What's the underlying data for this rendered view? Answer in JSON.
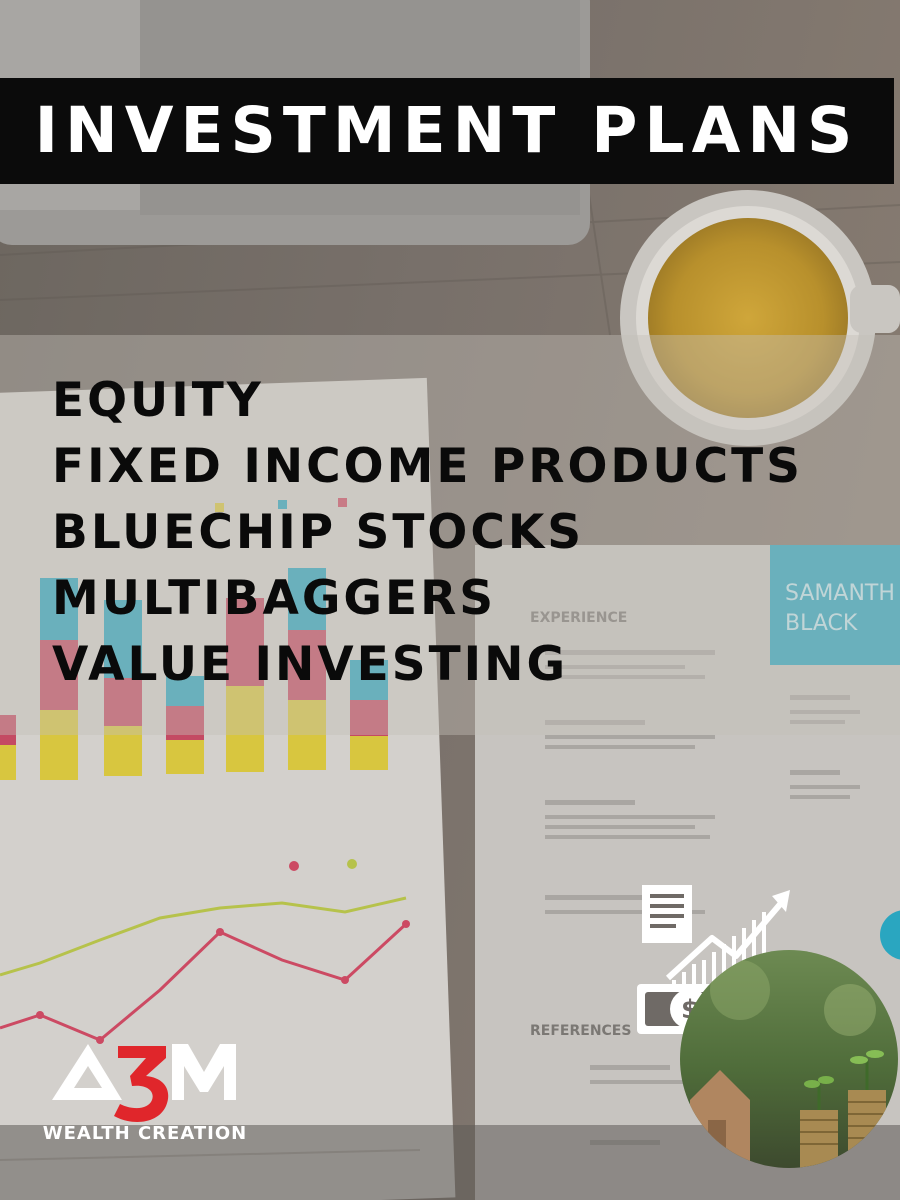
{
  "title": "INVESTMENT PLANS",
  "plans": [
    "EQUITY",
    "FIXED INCOME PRODUCTS",
    "BLUECHIP STOCKS",
    "MULTIBAGGERS",
    "VALUE INVESTING"
  ],
  "logo": {
    "wordmark": "A3M",
    "tagline": "WEALTH CREATION"
  },
  "background_paper": {
    "resume_name": "SAMANTHA BLACK",
    "resume_heading": "EXPERIENCE",
    "references_heading": "REFERENCES"
  },
  "icons": {
    "finance": "money-growth-icon",
    "photo": "coin-plant-house-photo"
  },
  "colors": {
    "title_bar": "#0b0b0b",
    "title_text": "#ffffff",
    "plan_text": "#0a0a0a",
    "logo_red": "#e0262b",
    "accent_cyan": "#2aa6c0"
  }
}
